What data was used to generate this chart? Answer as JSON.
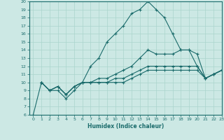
{
  "xlabel": "Humidex (Indice chaleur)",
  "bg_color": "#cce8e4",
  "line_color": "#1a6b6b",
  "grid_color": "#aad4cc",
  "xlim": [
    -0.5,
    23
  ],
  "ylim": [
    6,
    20
  ],
  "xticks": [
    0,
    1,
    2,
    3,
    4,
    5,
    6,
    7,
    8,
    9,
    10,
    11,
    12,
    13,
    14,
    15,
    16,
    17,
    18,
    19,
    20,
    21,
    22,
    23
  ],
  "yticks": [
    6,
    7,
    8,
    9,
    10,
    11,
    12,
    13,
    14,
    15,
    16,
    17,
    18,
    19,
    20
  ],
  "line1_x": [
    0,
    1,
    2,
    3,
    4,
    5,
    6,
    7,
    8,
    9,
    10,
    11,
    12,
    13,
    14,
    15,
    16,
    17,
    18,
    19,
    20,
    21,
    22,
    23
  ],
  "line1_y": [
    6,
    10,
    9,
    9,
    8,
    9,
    10,
    12,
    13,
    15,
    16,
    17,
    18.5,
    19,
    20,
    19,
    18,
    16,
    14,
    14,
    12,
    10.5,
    11,
    11.5
  ],
  "line2_x": [
    1,
    2,
    3,
    4,
    5,
    6,
    7,
    8,
    9,
    10,
    11,
    12,
    13,
    14,
    15,
    16,
    17,
    18,
    19,
    20,
    21,
    22,
    23
  ],
  "line2_y": [
    10,
    9,
    9.5,
    8.5,
    9.5,
    10,
    10,
    10.5,
    10.5,
    11,
    11.5,
    12,
    13,
    14,
    13.5,
    13.5,
    13.5,
    14,
    14,
    13.5,
    10.5,
    11,
    11.5
  ],
  "line3_x": [
    1,
    2,
    3,
    4,
    5,
    6,
    7,
    8,
    9,
    10,
    11,
    12,
    13,
    14,
    15,
    16,
    17,
    18,
    19,
    20,
    21,
    22,
    23
  ],
  "line3_y": [
    10,
    9,
    9.5,
    8.5,
    9.5,
    10,
    10,
    10,
    10,
    10.5,
    10.5,
    11,
    11.5,
    12,
    12,
    12,
    12,
    12,
    12,
    12,
    10.5,
    11,
    11.5
  ],
  "line4_x": [
    1,
    2,
    3,
    4,
    5,
    6,
    7,
    8,
    9,
    10,
    11,
    12,
    13,
    14,
    15,
    16,
    17,
    18,
    19,
    20,
    21,
    22,
    23
  ],
  "line4_y": [
    10,
    9,
    9.5,
    8.5,
    9.5,
    10,
    10,
    10,
    10,
    10,
    10,
    10.5,
    11,
    11.5,
    11.5,
    11.5,
    11.5,
    11.5,
    11.5,
    11.5,
    10.5,
    11,
    11.5
  ]
}
